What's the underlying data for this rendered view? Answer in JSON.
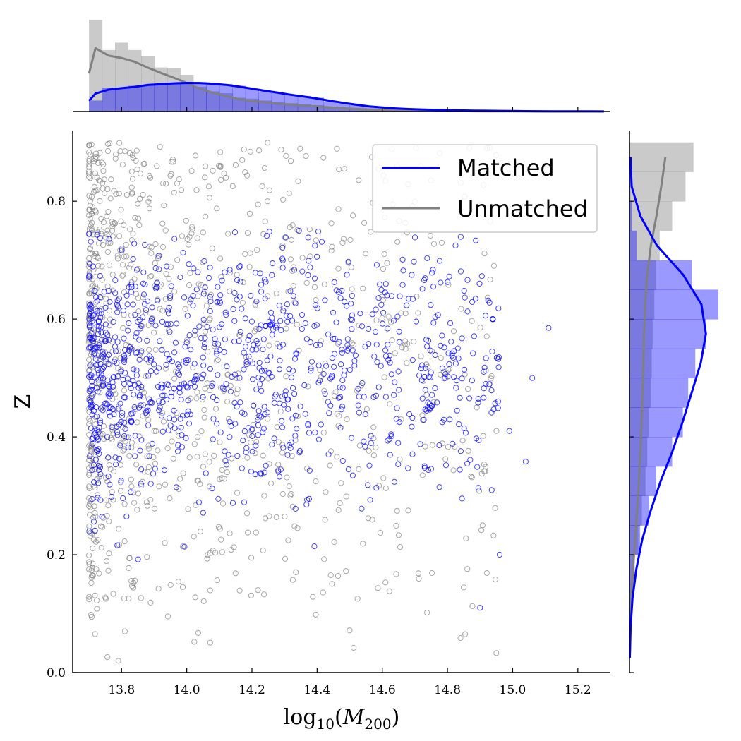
{
  "chart_data": {
    "type": "scatter",
    "title": "",
    "xlabel": "log10(M200)",
    "ylabel": "Z",
    "xlim": [
      13.65,
      15.3
    ],
    "ylim": [
      0.0,
      0.92
    ],
    "xticks": [
      13.8,
      14.0,
      14.2,
      14.4,
      14.6,
      14.8,
      15.0,
      15.2
    ],
    "yticks": [
      0.0,
      0.2,
      0.4,
      0.6,
      0.8
    ],
    "grid": false,
    "legend_placement": "top-right",
    "series": [
      {
        "name": "Matched",
        "color": "#0000ff",
        "marker": "open-circle",
        "n_points": 1000,
        "x_range": [
          13.7,
          15.11
        ],
        "mode_x": 14.05,
        "y_mean": 0.52,
        "y_std": 0.11,
        "extreme_points": [
          [
            15.11,
            0.585
          ],
          [
            15.06,
            0.5
          ],
          [
            15.04,
            0.358
          ],
          [
            14.99,
            0.41
          ],
          [
            14.96,
            0.2
          ],
          [
            14.9,
            0.11
          ]
        ],
        "kde_x_peak": 14.1,
        "kde_y_peak": 0.575
      },
      {
        "name": "Unmatched",
        "color": "#808080",
        "marker": "open-circle",
        "n_points": 1000,
        "x_range": [
          13.7,
          14.95
        ],
        "mode_x": 13.8,
        "y_range": [
          0.02,
          0.9
        ],
        "extreme_points": [
          [
            13.79,
            0.02
          ],
          [
            13.81,
            0.07
          ],
          [
            14.89,
            0.45
          ],
          [
            14.95,
            0.41
          ]
        ],
        "kde_x_peak": 13.8,
        "kde_y_peak": 0.88
      }
    ],
    "marginal_x": {
      "bin_edges": [
        13.7,
        13.74,
        13.78,
        13.82,
        13.86,
        13.9,
        13.94,
        13.98,
        14.02,
        14.06,
        14.1,
        14.14,
        14.18,
        14.22,
        14.26,
        14.3,
        14.34,
        14.38,
        14.42,
        14.46,
        14.5,
        14.54,
        14.58,
        14.62,
        14.66,
        14.7,
        14.74,
        14.78,
        14.82,
        14.86,
        14.9,
        14.94,
        14.98,
        15.02,
        15.06,
        15.1,
        15.14,
        15.18,
        15.22,
        15.26,
        15.3
      ],
      "Matched": [
        12,
        26,
        26,
        28,
        29,
        30,
        31,
        32,
        32,
        31,
        30,
        28,
        25,
        22,
        20,
        18,
        17,
        15,
        11,
        9,
        7,
        5,
        4,
        3,
        2.5,
        2,
        1.8,
        1.5,
        1.2,
        1,
        0.8,
        0.6,
        0.5,
        0.4,
        0.3,
        0.2,
        0.2,
        0.1,
        0.1,
        0.1
      ],
      "Unmatched": [
        100,
        67,
        75,
        67,
        60,
        48,
        47,
        40,
        27,
        22,
        20,
        15,
        14,
        12,
        10,
        9,
        8,
        7,
        5,
        4,
        3,
        2.5,
        2,
        1.5,
        1.2,
        1,
        0.8,
        0.6,
        0.5,
        0.4,
        0.3,
        0.2,
        0.1,
        0.1,
        0,
        0,
        0,
        0,
        0,
        0
      ]
    },
    "marginal_y": {
      "bin_edges": [
        0.0,
        0.05,
        0.1,
        0.15,
        0.2,
        0.25,
        0.3,
        0.35,
        0.4,
        0.45,
        0.5,
        0.55,
        0.6,
        0.65,
        0.7,
        0.75,
        0.8,
        0.85,
        0.9
      ],
      "Matched": [
        0,
        0,
        2,
        5,
        12,
        22,
        30,
        48,
        60,
        66,
        74,
        86,
        100,
        70,
        8,
        3,
        1,
        0.5
      ],
      "Unmatched": [
        0,
        0,
        3,
        6,
        10,
        14,
        18,
        20,
        22,
        24,
        25,
        26,
        28,
        30,
        34,
        48,
        63,
        72
      ]
    },
    "legend": [
      "Matched",
      "Unmatched"
    ]
  },
  "labels": {
    "xlabel_base": "log",
    "xlabel_sub": "10",
    "xlabel_var": "M",
    "xlabel_var_sub": "200",
    "ylabel": "Z",
    "legend_matched": "Matched",
    "legend_unmatched": "Unmatched"
  }
}
